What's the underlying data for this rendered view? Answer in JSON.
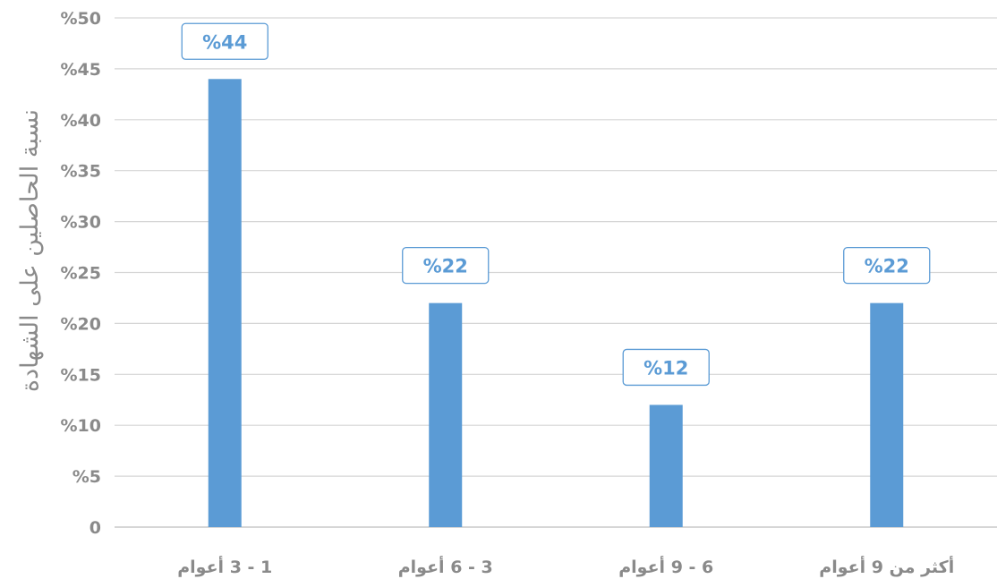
{
  "chart_data": {
    "type": "bar",
    "title": "",
    "xlabel": "",
    "ylabel": "نسبة الحاصلين على الشهادة",
    "categories": [
      "1 - 3 أعوام",
      "3 - 6 أعوام",
      "6 - 9 أعوام",
      "أكثر من 9 أعوام"
    ],
    "values": [
      44,
      22,
      12,
      22
    ],
    "data_labels": [
      "%44",
      "%22",
      "%12",
      "%22"
    ],
    "ylim": [
      0,
      50
    ],
    "y_ticks": [
      0,
      5,
      10,
      15,
      20,
      25,
      30,
      35,
      40,
      45,
      50
    ],
    "y_tick_labels": [
      "0",
      "%5",
      "%10",
      "%15",
      "%20",
      "%25",
      "%30",
      "%35",
      "%40",
      "%45",
      "%50"
    ],
    "grid": true,
    "legend": "none",
    "bar_color": "#5b9bd5",
    "label_border_color": "#5b9bd5",
    "label_text_color": "#5b9bd5"
  }
}
